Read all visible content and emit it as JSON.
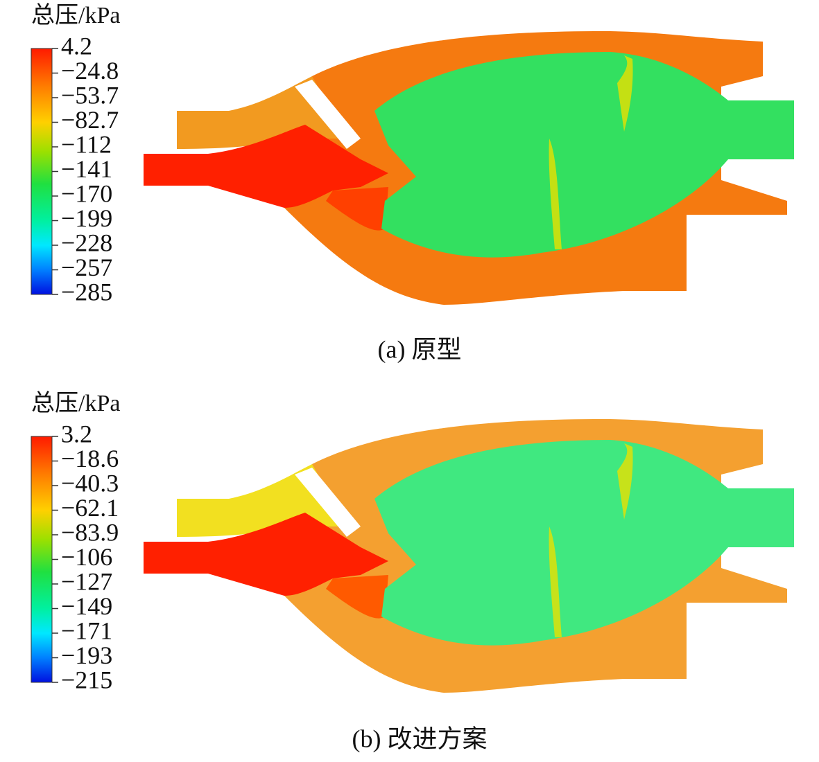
{
  "panels": [
    {
      "colorbar": {
        "title": "总压/kPa",
        "ticks": [
          "4.2",
          "−24.8",
          "−53.7",
          "−82.7",
          "−112",
          "−141",
          "−170",
          "−199",
          "−228",
          "−257",
          "−285"
        ]
      },
      "caption": "(a) 原型"
    },
    {
      "colorbar": {
        "title": "总压/kPa",
        "ticks": [
          "3.2",
          "−18.6",
          "−40.3",
          "−62.1",
          "−83.9",
          "−106",
          "−127",
          "−149",
          "−171",
          "−193",
          "−215"
        ]
      },
      "caption": "(b) 改进方案"
    }
  ]
}
